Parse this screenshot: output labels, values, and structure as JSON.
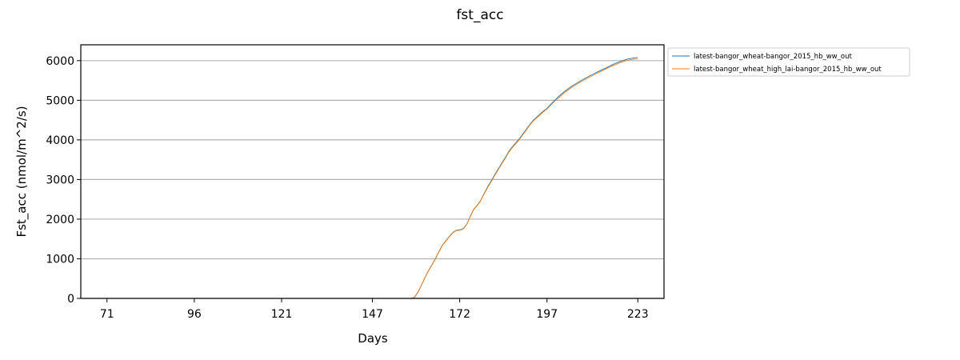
{
  "chart_data": {
    "type": "line",
    "title": "fst_acc",
    "xlabel": "Days",
    "ylabel": "Fst_acc (nmol/m^2/s)",
    "xlim": [
      63.5,
      230.5
    ],
    "ylim": [
      0,
      6400
    ],
    "xticks": [
      71,
      96,
      121,
      147,
      172,
      197,
      223
    ],
    "yticks": [
      0,
      1000,
      2000,
      3000,
      4000,
      5000,
      6000
    ],
    "grid": "horizontal",
    "legend_position": "outside-top-right",
    "series": [
      {
        "name": "latest-bangor_wheat-bangor_2015_hb_ww_out",
        "color": "#1f77b4",
        "x": [
          71,
          100,
          130,
          158,
          159,
          160,
          161,
          162,
          163,
          164,
          165,
          166,
          167,
          168,
          169,
          170,
          171,
          172,
          173,
          174,
          175,
          176,
          177,
          178,
          179,
          180,
          181,
          182,
          183,
          184,
          185,
          186,
          187,
          188,
          189,
          190,
          191,
          192,
          193,
          194,
          195,
          196,
          197,
          198,
          199,
          200,
          202,
          204,
          206,
          208,
          210,
          212,
          214,
          216,
          218,
          220,
          222,
          223
        ],
        "y": [
          0,
          0,
          0,
          0,
          30,
          150,
          330,
          520,
          690,
          840,
          1000,
          1170,
          1340,
          1450,
          1560,
          1660,
          1720,
          1730,
          1760,
          1870,
          2070,
          2250,
          2350,
          2470,
          2650,
          2820,
          2960,
          3120,
          3260,
          3410,
          3550,
          3700,
          3820,
          3920,
          4020,
          4140,
          4260,
          4380,
          4490,
          4570,
          4650,
          4730,
          4800,
          4890,
          4980,
          5070,
          5220,
          5350,
          5460,
          5560,
          5650,
          5740,
          5820,
          5910,
          5980,
          6040,
          6070,
          6080
        ]
      },
      {
        "name": "latest-bangor_wheat_high_lai-bangor_2015_hb_ww_out",
        "color": "#ff7f0e",
        "x": [
          71,
          100,
          130,
          158,
          159,
          160,
          161,
          162,
          163,
          164,
          165,
          166,
          167,
          168,
          169,
          170,
          171,
          172,
          173,
          174,
          175,
          176,
          177,
          178,
          179,
          180,
          181,
          182,
          183,
          184,
          185,
          186,
          187,
          188,
          189,
          190,
          191,
          192,
          193,
          194,
          195,
          196,
          197,
          198,
          199,
          200,
          202,
          204,
          206,
          208,
          210,
          212,
          214,
          216,
          218,
          220,
          222,
          223
        ],
        "y": [
          0,
          0,
          0,
          0,
          25,
          140,
          320,
          510,
          680,
          830,
          990,
          1160,
          1330,
          1440,
          1550,
          1650,
          1710,
          1720,
          1750,
          1860,
          2060,
          2240,
          2340,
          2460,
          2640,
          2800,
          2940,
          3100,
          3240,
          3390,
          3530,
          3680,
          3800,
          3900,
          4000,
          4120,
          4240,
          4360,
          4470,
          4550,
          4630,
          4710,
          4780,
          4870,
          4960,
          5040,
          5190,
          5320,
          5430,
          5530,
          5620,
          5710,
          5800,
          5880,
          5950,
          6010,
          6040,
          6040
        ]
      }
    ]
  }
}
